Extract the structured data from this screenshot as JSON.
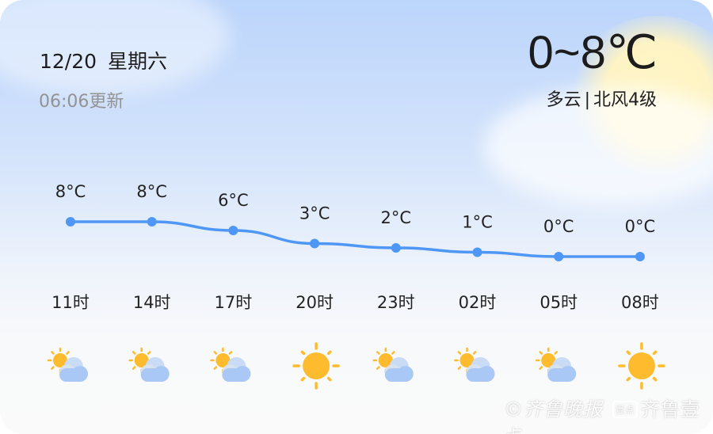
{
  "header": {
    "date": "12/20",
    "weekday": "星期六",
    "updated": "06:06更新",
    "temp_range": "0~8℃",
    "condition": "多云",
    "wind": "北风4级"
  },
  "hourly": [
    {
      "time": "11时",
      "temp": 8,
      "label": "8°C",
      "icon": "partly-cloudy-icon"
    },
    {
      "time": "14时",
      "temp": 8,
      "label": "8°C",
      "icon": "partly-cloudy-icon"
    },
    {
      "time": "17时",
      "temp": 6,
      "label": "6°C",
      "icon": "partly-cloudy-icon"
    },
    {
      "time": "20时",
      "temp": 3,
      "label": "3°C",
      "icon": "sunny-icon"
    },
    {
      "time": "23时",
      "temp": 2,
      "label": "2°C",
      "icon": "partly-cloudy-icon"
    },
    {
      "time": "02时",
      "temp": 1,
      "label": "1°C",
      "icon": "partly-cloudy-icon"
    },
    {
      "time": "05时",
      "temp": 0,
      "label": "0°C",
      "icon": "partly-cloudy-icon"
    },
    {
      "time": "08时",
      "temp": 0,
      "label": "0°C",
      "icon": "sunny-icon"
    }
  ],
  "colors": {
    "line": "#4f97f7",
    "sun": "#fdbb2d",
    "cloud": "#a9c8f5"
  },
  "watermark": {
    "brand1": "齐鲁晚报",
    "brand2": "齐鲁壹点",
    "badge": "壹点"
  }
}
